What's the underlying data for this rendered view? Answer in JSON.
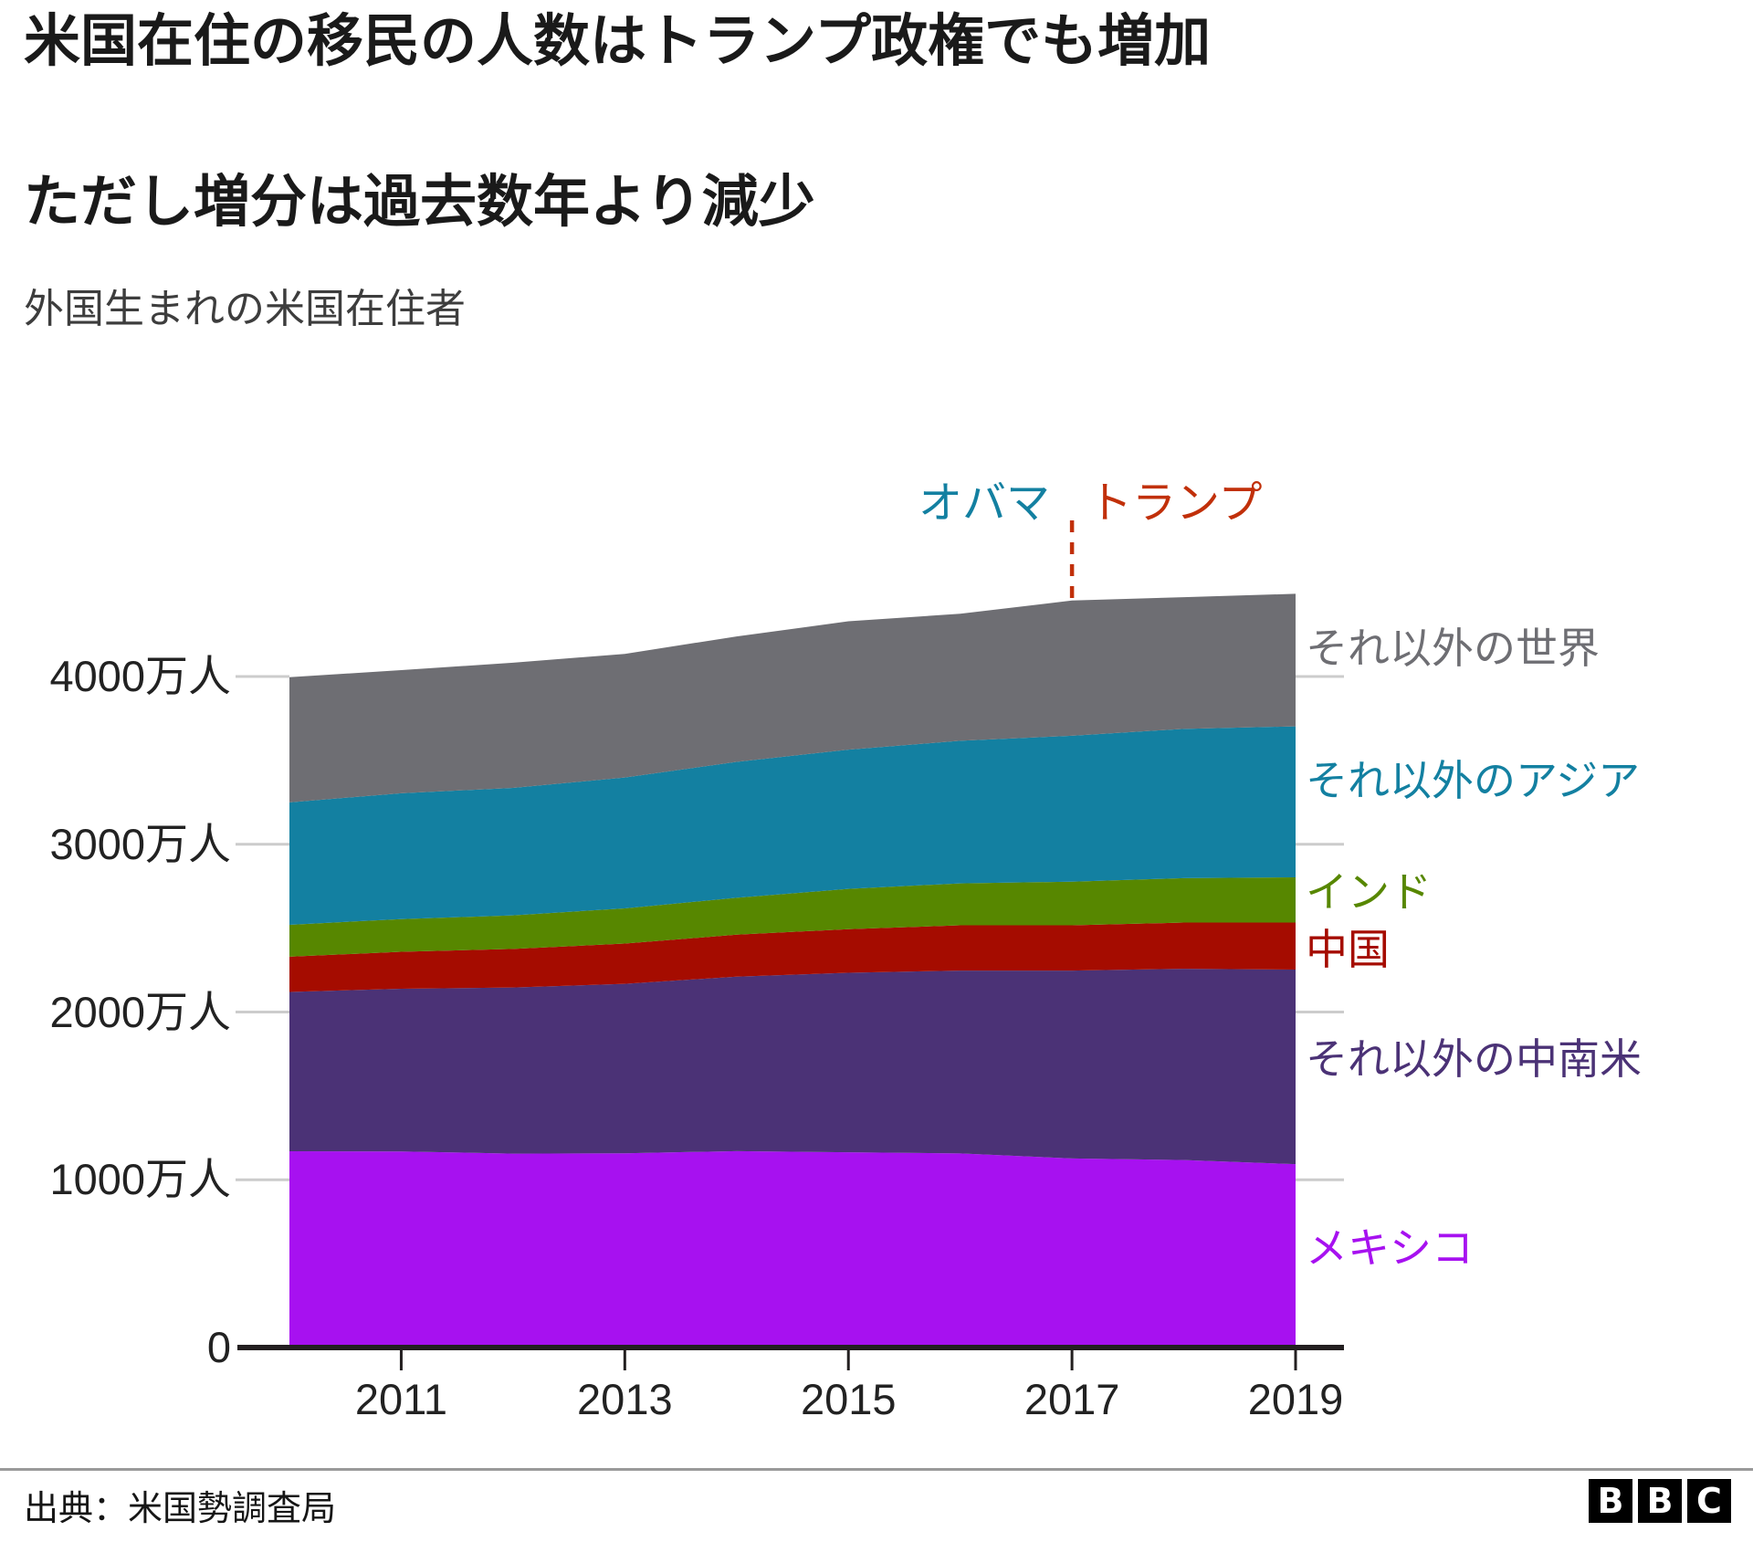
{
  "header": {
    "title_line1": "米国在住の移民の人数はトランプ政権でも増加",
    "title_line2": "ただし増分は過去数年より減少",
    "subtitle": "外国生まれの米国在住者"
  },
  "footer": {
    "source": "出典：米国勢調査局",
    "logo_letters": [
      "B",
      "B",
      "C"
    ]
  },
  "chart_data": {
    "type": "area",
    "stacked": true,
    "title": "外国生まれの米国在住者",
    "unit": "万人",
    "x": [
      2010,
      2011,
      2012,
      2013,
      2014,
      2015,
      2016,
      2017,
      2018,
      2019
    ],
    "x_ticks": [
      {
        "value": 2011,
        "label": "2011"
      },
      {
        "value": 2013,
        "label": "2013"
      },
      {
        "value": 2015,
        "label": "2015"
      },
      {
        "value": 2017,
        "label": "2017"
      },
      {
        "value": 2019,
        "label": "2019"
      }
    ],
    "y_ticks": [
      {
        "value": 4000,
        "label": "4000万人"
      },
      {
        "value": 3000,
        "label": "3000万人"
      },
      {
        "value": 2000,
        "label": "2000万人"
      },
      {
        "value": 1000,
        "label": "1000万人"
      },
      {
        "value": 0,
        "label": "0"
      }
    ],
    "ylim": [
      0,
      4600
    ],
    "xlim": [
      2010,
      2019
    ],
    "grid": "tick-stubs-both-sides",
    "legend_position": "right-of-plot",
    "series": [
      {
        "label": "メキシコ",
        "color": "#A711F0",
        "values": [
          1170,
          1169,
          1156,
          1158,
          1171,
          1164,
          1157,
          1127,
          1118,
          1093
        ]
      },
      {
        "label": "それ以外の中南米",
        "color": "#4B3276",
        "values": [
          950,
          970,
          990,
          1010,
          1040,
          1070,
          1090,
          1120,
          1140,
          1160
        ]
      },
      {
        "label": "中国",
        "color": "#A50C00",
        "values": [
          210,
          220,
          230,
          240,
          250,
          260,
          270,
          270,
          275,
          280
        ]
      },
      {
        "label": "インド",
        "color": "#578700",
        "values": [
          190,
          195,
          200,
          210,
          220,
          240,
          250,
          260,
          265,
          270
        ]
      },
      {
        "label": "それ以外のアジア",
        "color": "#1380A1",
        "values": [
          730,
          750,
          760,
          780,
          810,
          830,
          850,
          870,
          890,
          900
        ]
      },
      {
        "label": "それ以外の世界",
        "color": "#6E6E73",
        "values": [
          746,
          734,
          746,
          737,
          748,
          765,
          757,
          806,
          785,
          790
        ]
      }
    ],
    "totals": [
      3996,
      4038,
      4082,
      4135,
      4239,
      4329,
      4374,
      4453,
      4473,
      4493
    ],
    "annotations": {
      "obama": {
        "label": "オバマ",
        "color": "#1380A1"
      },
      "trump": {
        "label": "トランプ",
        "color": "#C1300A"
      },
      "divider_x": 2017,
      "divider_line_color": "#C1300A"
    },
    "axis_color": "#231F20",
    "grid_stub_color": "#CCCCCC",
    "tick_label_color": "#222222"
  }
}
